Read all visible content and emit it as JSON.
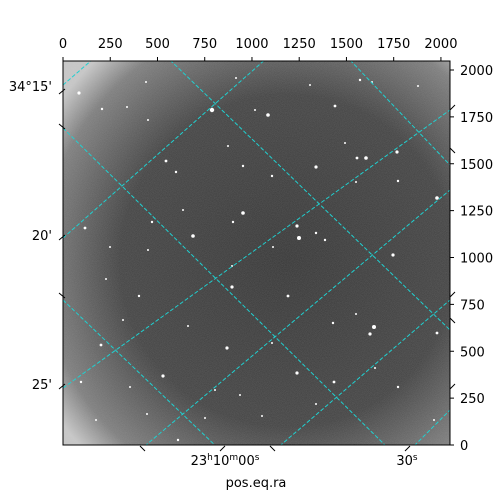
{
  "image": {
    "description_icon": "astronomical-sky-image",
    "background_color": "#3c3c3c",
    "edge_color": "#bdbdbd",
    "star_color": "#ffffff"
  },
  "pixel_axes": {
    "top_ticks": [
      "0",
      "250",
      "500",
      "750",
      "1000",
      "1250",
      "1500",
      "1750",
      "2000"
    ],
    "right_ticks": [
      "0",
      "250",
      "500",
      "750",
      "1000",
      "1250",
      "1500",
      "1750",
      "2000"
    ],
    "range": [
      0,
      2048
    ]
  },
  "world_axes": {
    "dec_ticks": [
      "34°15'",
      "20'",
      "25'"
    ],
    "ra_ticks": [
      {
        "hour": "23",
        "hour_unit": "h",
        "minute": "10",
        "minute_unit": "m",
        "second": "00",
        "second_unit": "s"
      },
      {
        "hour": "",
        "hour_unit": "",
        "minute": "",
        "minute_unit": "",
        "second": "30",
        "second_unit": "s"
      }
    ],
    "xlabel": "pos.eq.ra"
  },
  "grid": {
    "color": "#20d0d0",
    "style": "dashed"
  }
}
